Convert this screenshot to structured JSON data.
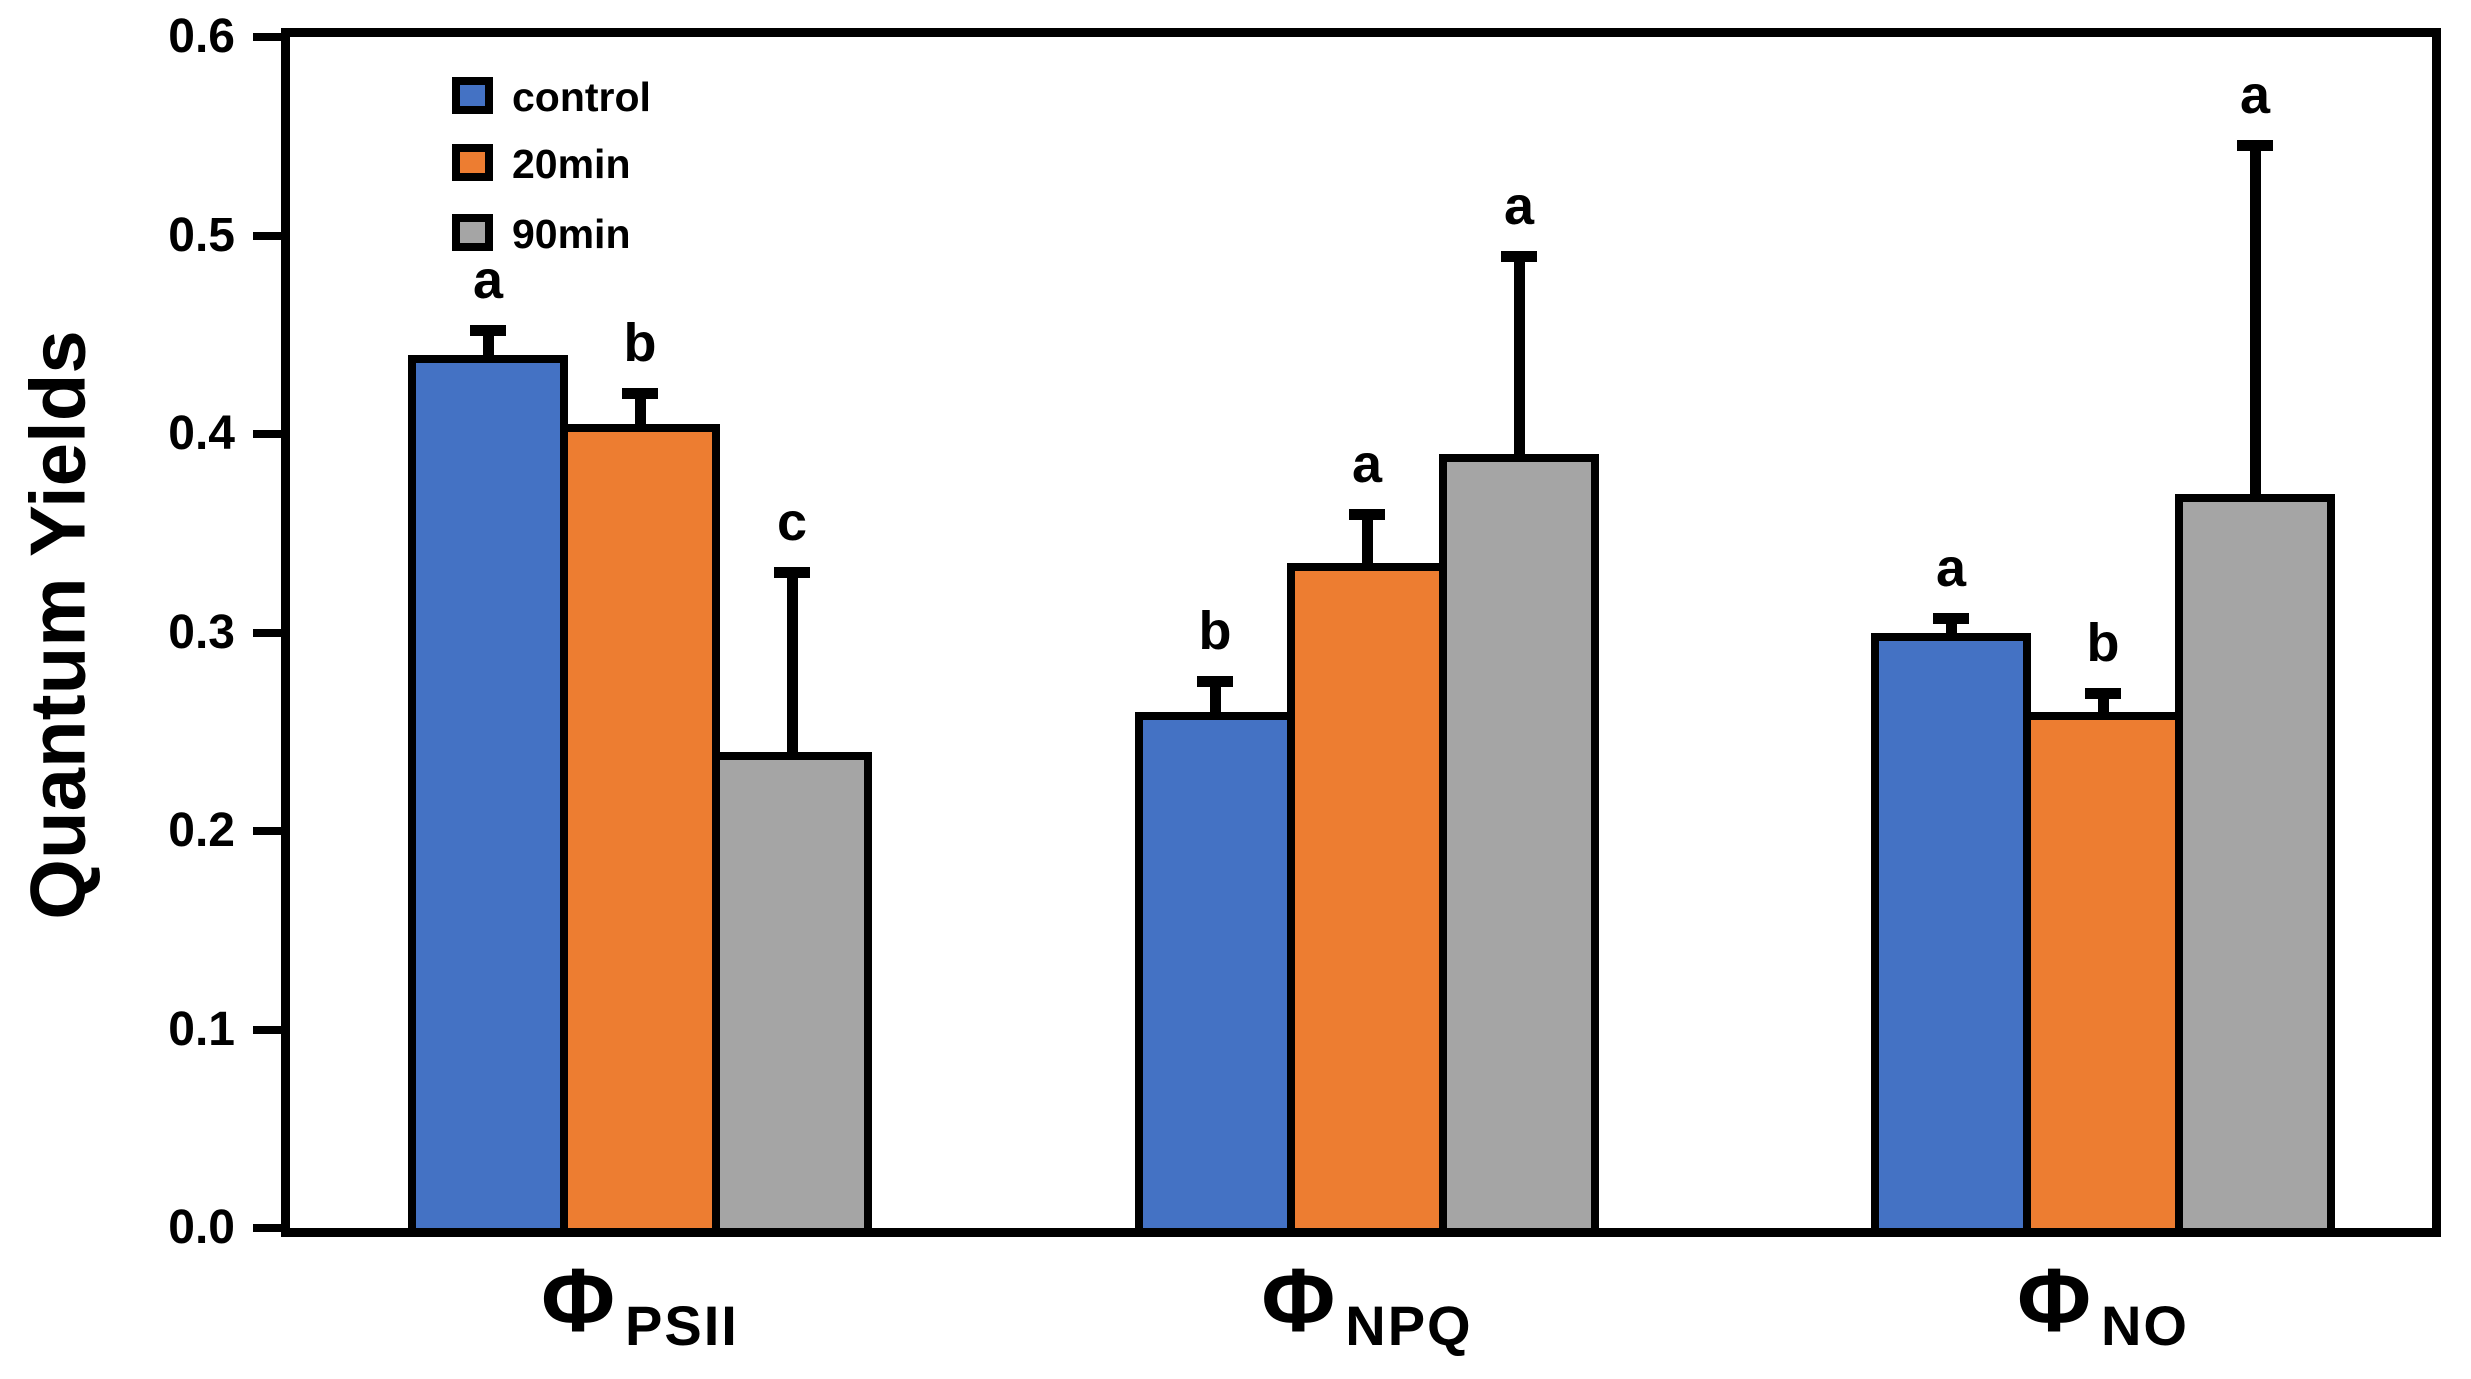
{
  "chart_data": {
    "type": "bar",
    "title": "",
    "ylabel": "Quantum Yields",
    "xlabel": "",
    "ylim": [
      0.0,
      0.6
    ],
    "ytick_step": 0.1,
    "ytick_labels": [
      "0.0",
      "0.1",
      "0.2",
      "0.3",
      "0.4",
      "0.5",
      "0.6"
    ],
    "grid": false,
    "frame": "full-box",
    "error_bars": "upward-only",
    "axis_color": "#000000",
    "background_color": "#ffffff",
    "categories": [
      {
        "symbol": "Φ",
        "subscript": "PSII"
      },
      {
        "symbol": "Φ",
        "subscript": "NPQ"
      },
      {
        "symbol": "Φ",
        "subscript": "NO"
      }
    ],
    "series": [
      {
        "name": "control",
        "color": "#4472C4",
        "values": [
          0.44,
          0.26,
          0.3
        ],
        "errors": [
          0.015,
          0.018,
          0.01
        ],
        "sig_letters": [
          "a",
          "b",
          "a"
        ]
      },
      {
        "name": "20min",
        "color": "#ED7D31",
        "values": [
          0.405,
          0.335,
          0.26
        ],
        "errors": [
          0.018,
          0.027,
          0.012
        ],
        "sig_letters": [
          "b",
          "a",
          "b"
        ]
      },
      {
        "name": "90min",
        "color": "#A5A5A5",
        "values": [
          0.24,
          0.39,
          0.37
        ],
        "errors": [
          0.093,
          0.102,
          0.178
        ],
        "sig_letters": [
          "c",
          "a",
          "a"
        ]
      }
    ],
    "legend": {
      "position": "top-left-inside",
      "entries": [
        "control",
        "20min",
        "90min"
      ]
    }
  }
}
